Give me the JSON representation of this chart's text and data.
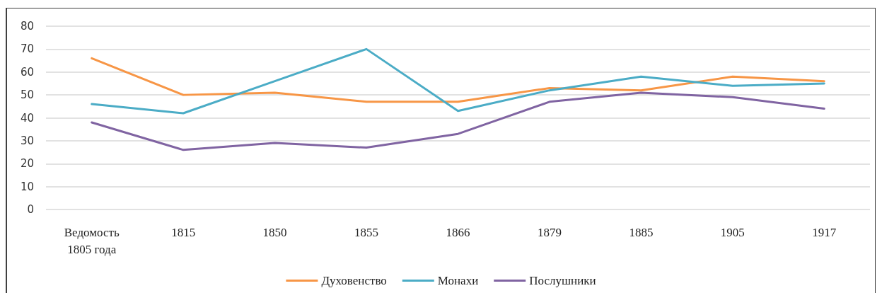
{
  "chart_data": {
    "type": "line",
    "categories": [
      "Ведомость 1805 года",
      "1815",
      "1850",
      "1855",
      "1866",
      "1879",
      "1885",
      "1905",
      "1917"
    ],
    "series": [
      {
        "name": "Духовенство",
        "color": "#f79646",
        "values": [
          66,
          50,
          51,
          47,
          47,
          53,
          52,
          58,
          56
        ]
      },
      {
        "name": "Монахи",
        "color": "#4bacc6",
        "values": [
          46,
          42,
          56,
          70,
          43,
          52,
          58,
          54,
          55
        ]
      },
      {
        "name": "Послушники",
        "color": "#8064a2",
        "values": [
          38,
          26,
          29,
          27,
          33,
          47,
          51,
          49,
          44
        ]
      }
    ],
    "ylim": [
      0,
      80
    ],
    "yticks": [
      0,
      10,
      20,
      30,
      40,
      50,
      60,
      70,
      80
    ],
    "grid": "y",
    "legend": "bottom",
    "marker": "none",
    "line_style": "solid"
  }
}
